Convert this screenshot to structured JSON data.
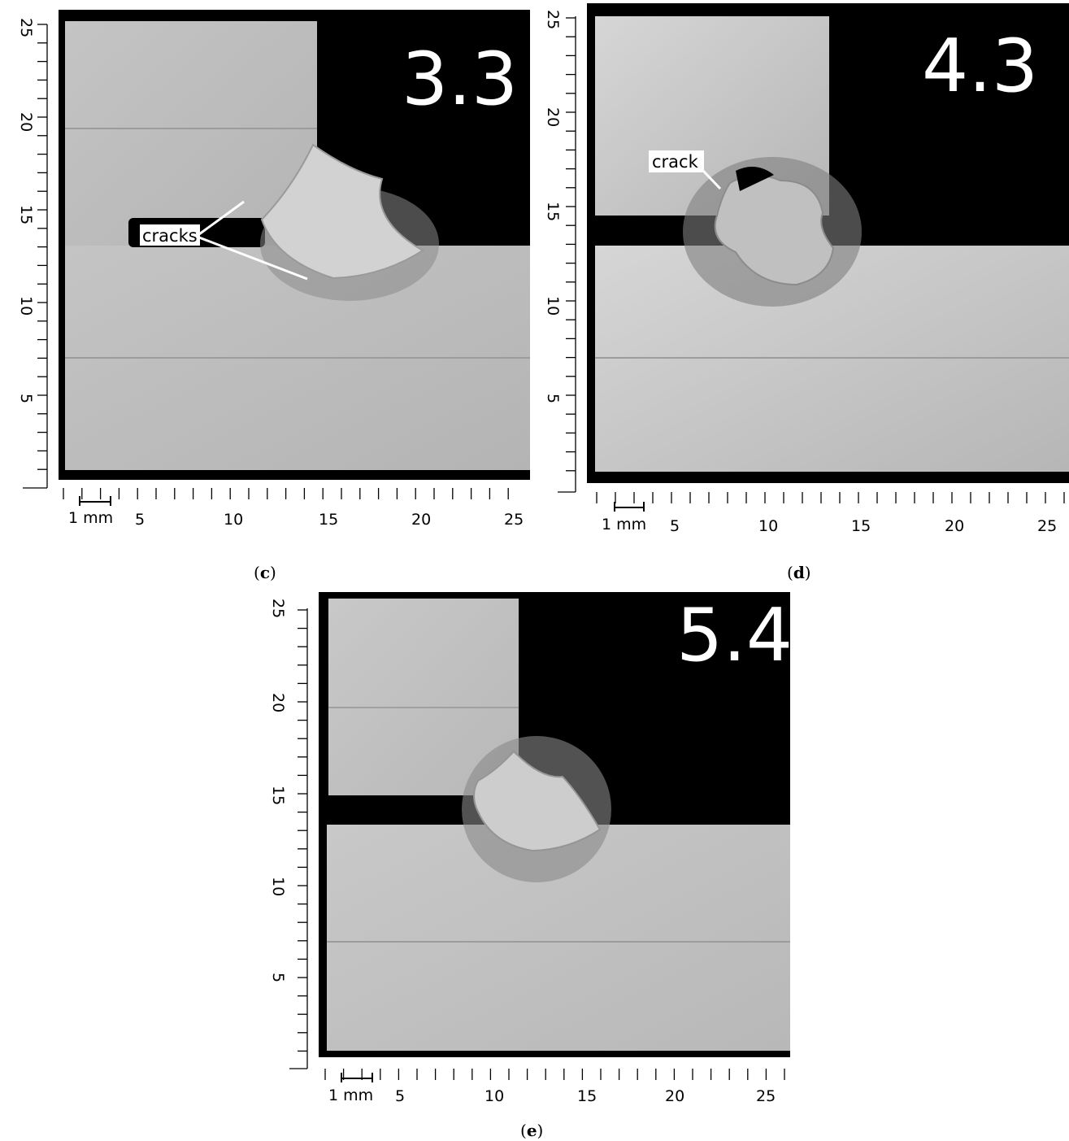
{
  "panels": [
    {
      "id": "c",
      "caption": "c",
      "value_label": "3.3",
      "annotation": "cracks",
      "axis_y_ticks": [
        "5",
        "10",
        "15",
        "20",
        "25"
      ],
      "axis_x_ticks": [
        "5",
        "10",
        "15",
        "20",
        "25"
      ],
      "scale_bar_label": "1 mm"
    },
    {
      "id": "d",
      "caption": "d",
      "value_label": "4.3",
      "annotation": "crack",
      "axis_y_ticks": [
        "5",
        "10",
        "15",
        "20",
        "25"
      ],
      "axis_x_ticks": [
        "5",
        "10",
        "15",
        "20",
        "25"
      ],
      "scale_bar_label": "1 mm"
    },
    {
      "id": "e",
      "caption": "e",
      "value_label": "5.4",
      "annotation": "",
      "axis_y_ticks": [
        "5",
        "10",
        "15",
        "20",
        "25"
      ],
      "axis_x_ticks": [
        "5",
        "10",
        "15",
        "20",
        "25"
      ],
      "scale_bar_label": "1 mm"
    }
  ],
  "colors": {
    "background": "#000000",
    "base_metal": "#bcbcbc",
    "weld": "#cfcfcf",
    "haz": "#7a7a7a",
    "label": "#ffffff"
  }
}
